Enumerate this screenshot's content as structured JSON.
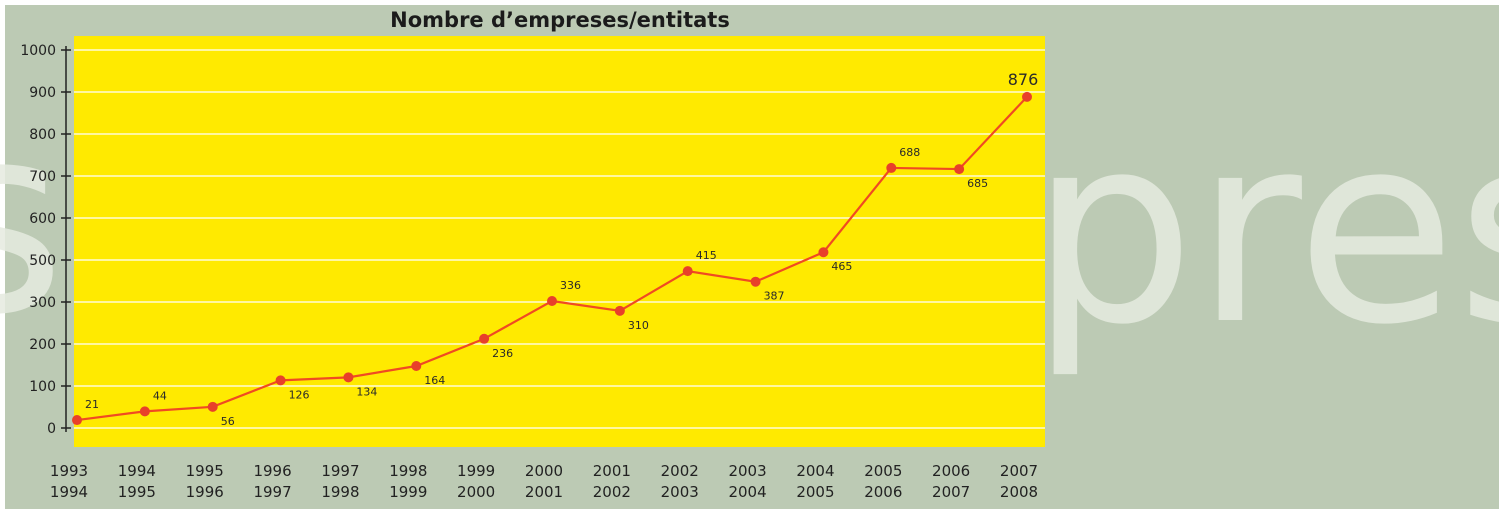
{
  "background": {
    "watermark_text": "presa",
    "color": "#bccab4"
  },
  "chart_data": {
    "type": "line",
    "title": "Nombre d’empreses/entitats",
    "xlabel": "",
    "ylabel": "",
    "categories": [
      "1993\n1994",
      "1994\n1995",
      "1995\n1996",
      "1996\n1997",
      "1997\n1998",
      "1998\n1999",
      "1999\n2000",
      "2000\n2001",
      "2001\n2002",
      "2002\n2003",
      "2003\n2004",
      "2004\n2005",
      "2005\n2006",
      "2006\n2007",
      "2007\n2008"
    ],
    "y_tick_labels": [
      "0",
      "100",
      "200",
      "300",
      "500",
      "600",
      "700",
      "800",
      "900",
      "1000"
    ],
    "values": [
      21,
      44,
      56,
      126,
      134,
      164,
      236,
      336,
      310,
      415,
      387,
      465,
      688,
      685,
      876
    ],
    "ylim": [
      0,
      1000
    ],
    "grid": true,
    "legend": "none",
    "colors": {
      "plot_background": "#ffea00",
      "line": "#f04a22",
      "marker": "#e8402a",
      "gridline": "#ffffff"
    }
  }
}
